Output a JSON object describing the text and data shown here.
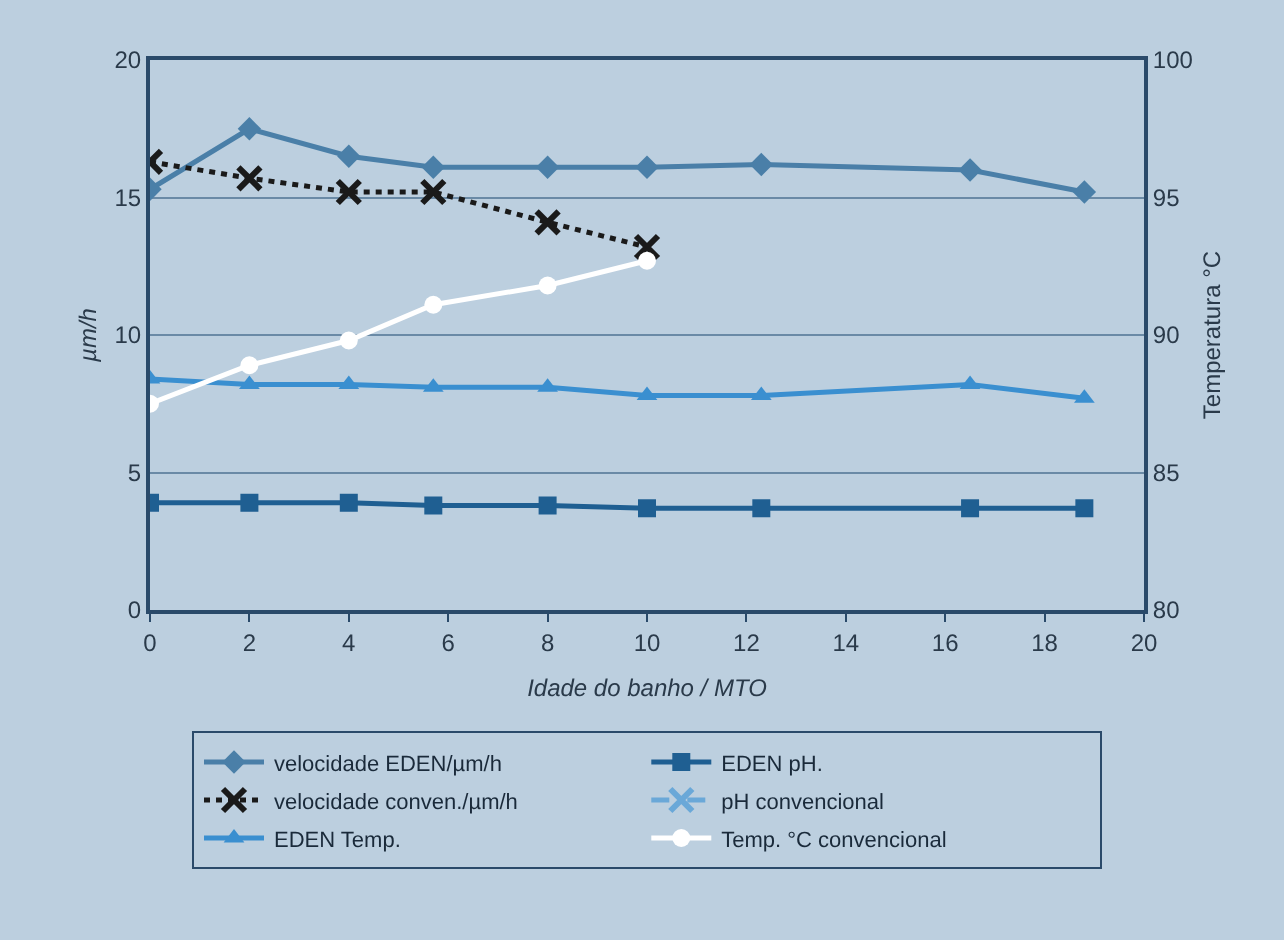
{
  "chart_data": {
    "type": "line",
    "xlabel": "Idade do banho / MTO",
    "ylabel": "µm/h",
    "y2label": "Temperatura °C",
    "xlim": [
      0,
      20
    ],
    "xticks": [
      0,
      2,
      4,
      6,
      8,
      10,
      12,
      14,
      16,
      18,
      20
    ],
    "ylim": [
      0,
      20
    ],
    "yticks": [
      0,
      5,
      10,
      15,
      20
    ],
    "y2lim": [
      80,
      100
    ],
    "y2ticks": [
      80,
      85,
      90,
      95,
      100
    ],
    "grid": "y",
    "legend": "bottom",
    "series": [
      {
        "name": "velocidade EDEN/µm/h",
        "color": "#4a7fa8",
        "marker": "diamond",
        "line_style": "solid",
        "x": [
          0,
          2,
          4,
          5.7,
          8,
          10,
          12.3,
          16.5,
          18.8
        ],
        "values": [
          15.3,
          17.5,
          16.5,
          16.1,
          16.1,
          16.1,
          16.2,
          16.0,
          15.2
        ]
      },
      {
        "name": "EDEN pH.",
        "color": "#1f5f92",
        "marker": "square",
        "line_style": "solid",
        "x": [
          0,
          2,
          4,
          5.7,
          8,
          10,
          12.3,
          16.5,
          18.8
        ],
        "values": [
          3.9,
          3.9,
          3.9,
          3.8,
          3.8,
          3.7,
          3.7,
          3.7,
          3.7
        ]
      },
      {
        "name": "velocidade conven./µm/h",
        "color": "#1a1a1a",
        "marker": "cross",
        "line_style": "dotted",
        "x": [
          0,
          2,
          4,
          5.7,
          8,
          10
        ],
        "values": [
          16.3,
          15.7,
          15.2,
          15.2,
          14.1,
          13.2
        ]
      },
      {
        "name": "pH convencional",
        "color": "#6aa8d8",
        "marker": "cross",
        "line_style": "dashed"
      },
      {
        "name": "EDEN Temp.",
        "color": "#3a8fd0",
        "marker": "triangle",
        "line_style": "solid",
        "axis": "y2",
        "x": [
          0,
          2,
          4,
          5.7,
          8,
          10,
          12.3,
          16.5,
          18.8
        ],
        "values": [
          88.4,
          88.2,
          88.2,
          88.1,
          88.1,
          87.8,
          87.8,
          88.2,
          87.7
        ]
      },
      {
        "name": "Temp. °C convencional",
        "color": "#ffffff",
        "marker": "circle",
        "line_style": "solid",
        "axis": "y2",
        "x": [
          0,
          2,
          4,
          5.7,
          8,
          10
        ],
        "values": [
          87.5,
          88.9,
          89.8,
          91.1,
          91.8,
          92.7
        ]
      }
    ]
  }
}
